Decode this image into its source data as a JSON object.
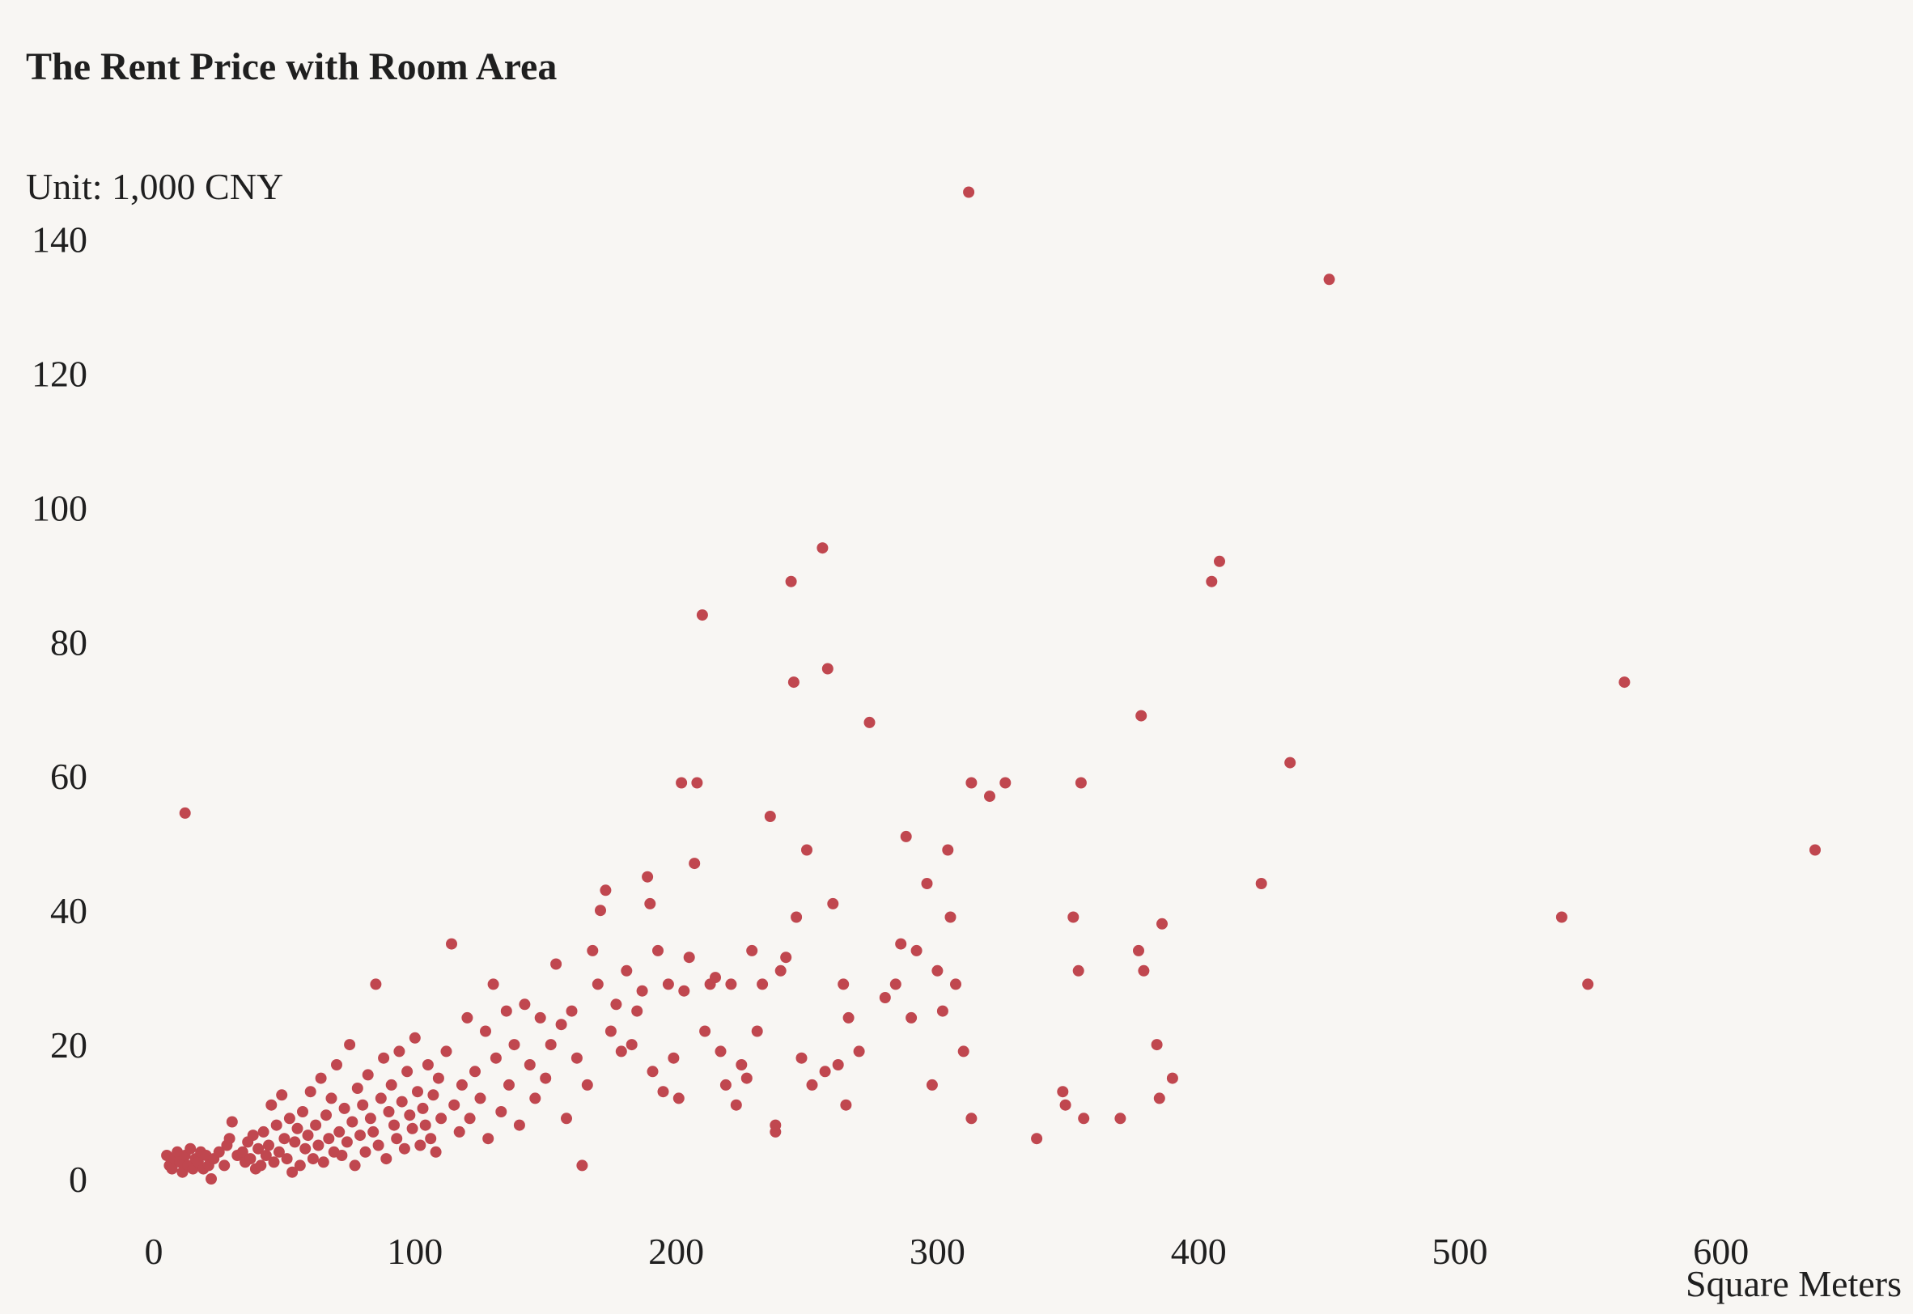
{
  "chart_data": {
    "type": "scatter",
    "title": "The Rent Price with Room Area",
    "unit_label": "Unit: 1,000 CNY",
    "xlabel": "Square Meters",
    "ylabel": "",
    "xlim": [
      -5,
      665
    ],
    "ylim": [
      -5,
      150
    ],
    "xticks": [
      0,
      100,
      200,
      300,
      400,
      500,
      600
    ],
    "yticks": [
      0,
      20,
      40,
      60,
      80,
      100,
      120,
      140
    ],
    "grid": false,
    "legend": "none",
    "point_color": "#c0474f",
    "series": [
      {
        "points": [
          [
            5,
            3.5
          ],
          [
            6,
            2
          ],
          [
            7,
            1.5
          ],
          [
            8,
            3
          ],
          [
            9,
            4
          ],
          [
            10,
            2.5
          ],
          [
            11,
            1
          ],
          [
            12,
            3.5
          ],
          [
            13,
            2
          ],
          [
            14,
            4.5
          ],
          [
            15,
            1.5
          ],
          [
            16,
            3
          ],
          [
            17,
            2.5
          ],
          [
            18,
            4
          ],
          [
            19,
            1.5
          ],
          [
            20,
            3.5
          ],
          [
            21,
            2
          ],
          [
            22,
            0
          ],
          [
            23,
            3
          ],
          [
            25,
            4
          ],
          [
            27,
            2
          ],
          [
            28,
            5
          ],
          [
            29,
            6
          ],
          [
            30,
            8.5
          ],
          [
            32,
            3.5
          ],
          [
            12,
            54.5
          ],
          [
            34,
            4
          ],
          [
            35,
            2.5
          ],
          [
            36,
            5.5
          ],
          [
            37,
            3
          ],
          [
            38,
            6.5
          ],
          [
            39,
            1.5
          ],
          [
            40,
            4.5
          ],
          [
            41,
            2
          ],
          [
            42,
            7
          ],
          [
            43,
            3.5
          ],
          [
            44,
            5
          ],
          [
            45,
            11
          ],
          [
            46,
            2.5
          ],
          [
            47,
            8
          ],
          [
            48,
            4
          ],
          [
            49,
            12.5
          ],
          [
            50,
            6
          ],
          [
            51,
            3
          ],
          [
            52,
            9
          ],
          [
            53,
            1
          ],
          [
            54,
            5.5
          ],
          [
            55,
            7.5
          ],
          [
            56,
            2
          ],
          [
            57,
            10
          ],
          [
            58,
            4.5
          ],
          [
            59,
            6.5
          ],
          [
            60,
            13
          ],
          [
            61,
            3
          ],
          [
            62,
            8
          ],
          [
            63,
            5
          ],
          [
            64,
            15
          ],
          [
            65,
            2.5
          ],
          [
            66,
            9.5
          ],
          [
            67,
            6
          ],
          [
            68,
            12
          ],
          [
            69,
            4
          ],
          [
            70,
            17
          ],
          [
            71,
            7
          ],
          [
            72,
            3.5
          ],
          [
            73,
            10.5
          ],
          [
            74,
            5.5
          ],
          [
            75,
            20
          ],
          [
            76,
            8.5
          ],
          [
            77,
            2
          ],
          [
            78,
            13.5
          ],
          [
            79,
            6.5
          ],
          [
            80,
            11
          ],
          [
            81,
            4
          ],
          [
            82,
            15.5
          ],
          [
            83,
            9
          ],
          [
            84,
            7
          ],
          [
            85,
            29
          ],
          [
            86,
            5
          ],
          [
            87,
            12
          ],
          [
            88,
            18
          ],
          [
            89,
            3
          ],
          [
            90,
            10
          ],
          [
            91,
            14
          ],
          [
            92,
            8
          ],
          [
            93,
            6
          ],
          [
            94,
            19
          ],
          [
            95,
            11.5
          ],
          [
            96,
            4.5
          ],
          [
            97,
            16
          ],
          [
            98,
            9.5
          ],
          [
            99,
            7.5
          ],
          [
            100,
            21
          ],
          [
            101,
            13
          ],
          [
            102,
            5
          ],
          [
            103,
            10.5
          ],
          [
            104,
            8
          ],
          [
            105,
            17
          ],
          [
            106,
            6
          ],
          [
            107,
            12.5
          ],
          [
            108,
            4
          ],
          [
            109,
            15
          ],
          [
            110,
            9
          ],
          [
            112,
            19
          ],
          [
            114,
            35
          ],
          [
            115,
            11
          ],
          [
            117,
            7
          ],
          [
            118,
            14
          ],
          [
            120,
            24
          ],
          [
            121,
            9
          ],
          [
            123,
            16
          ],
          [
            125,
            12
          ],
          [
            127,
            22
          ],
          [
            128,
            6
          ],
          [
            130,
            29
          ],
          [
            131,
            18
          ],
          [
            133,
            10
          ],
          [
            135,
            25
          ],
          [
            136,
            14
          ],
          [
            138,
            20
          ],
          [
            140,
            8
          ],
          [
            142,
            26
          ],
          [
            144,
            17
          ],
          [
            146,
            12
          ],
          [
            148,
            24
          ],
          [
            150,
            15
          ],
          [
            152,
            20
          ],
          [
            154,
            32
          ],
          [
            156,
            23
          ],
          [
            158,
            9
          ],
          [
            160,
            25
          ],
          [
            162,
            18
          ],
          [
            164,
            2
          ],
          [
            166,
            14
          ],
          [
            168,
            34
          ],
          [
            170,
            29
          ],
          [
            171,
            40
          ],
          [
            173,
            43
          ],
          [
            175,
            22
          ],
          [
            177,
            26
          ],
          [
            179,
            19
          ],
          [
            181,
            31
          ],
          [
            183,
            20
          ],
          [
            185,
            25
          ],
          [
            187,
            28
          ],
          [
            189,
            45
          ],
          [
            190,
            41
          ],
          [
            191,
            16
          ],
          [
            193,
            34
          ],
          [
            195,
            13
          ],
          [
            197,
            29
          ],
          [
            199,
            18
          ],
          [
            201,
            12
          ],
          [
            202,
            59
          ],
          [
            203,
            28
          ],
          [
            205,
            33
          ],
          [
            207,
            47
          ],
          [
            208,
            59
          ],
          [
            210,
            84
          ],
          [
            211,
            22
          ],
          [
            213,
            29
          ],
          [
            215,
            30
          ],
          [
            217,
            19
          ],
          [
            219,
            14
          ],
          [
            221,
            29
          ],
          [
            223,
            11
          ],
          [
            225,
            17
          ],
          [
            227,
            15
          ],
          [
            229,
            34
          ],
          [
            231,
            22
          ],
          [
            233,
            29
          ],
          [
            236,
            54
          ],
          [
            238,
            7
          ],
          [
            238,
            8
          ],
          [
            240,
            31
          ],
          [
            242,
            33
          ],
          [
            244,
            89
          ],
          [
            245,
            74
          ],
          [
            246,
            39
          ],
          [
            248,
            18
          ],
          [
            250,
            49
          ],
          [
            252,
            14
          ],
          [
            256,
            94
          ],
          [
            257,
            16
          ],
          [
            258,
            76
          ],
          [
            260,
            41
          ],
          [
            262,
            17
          ],
          [
            264,
            29
          ],
          [
            265,
            11
          ],
          [
            266,
            24
          ],
          [
            270,
            19
          ],
          [
            274,
            68
          ],
          [
            280,
            27
          ],
          [
            284,
            29
          ],
          [
            286,
            35
          ],
          [
            288,
            51
          ],
          [
            290,
            24
          ],
          [
            292,
            34
          ],
          [
            296,
            44
          ],
          [
            298,
            14
          ],
          [
            300,
            31
          ],
          [
            302,
            25
          ],
          [
            304,
            49
          ],
          [
            305,
            39
          ],
          [
            307,
            29
          ],
          [
            310,
            19
          ],
          [
            312,
            147
          ],
          [
            313,
            59
          ],
          [
            313,
            9
          ],
          [
            320,
            57
          ],
          [
            326,
            59
          ],
          [
            338,
            6
          ],
          [
            348,
            13
          ],
          [
            349,
            11
          ],
          [
            352,
            39
          ],
          [
            354,
            31
          ],
          [
            355,
            59
          ],
          [
            356,
            9
          ],
          [
            370,
            9
          ],
          [
            377,
            34
          ],
          [
            378,
            69
          ],
          [
            379,
            31
          ],
          [
            384,
            20
          ],
          [
            385,
            12
          ],
          [
            386,
            38
          ],
          [
            390,
            15
          ],
          [
            405,
            89
          ],
          [
            408,
            92
          ],
          [
            424,
            44
          ],
          [
            435,
            62
          ],
          [
            450,
            134
          ],
          [
            539,
            39
          ],
          [
            549,
            29
          ],
          [
            563,
            74
          ],
          [
            636,
            49
          ]
        ]
      }
    ]
  }
}
